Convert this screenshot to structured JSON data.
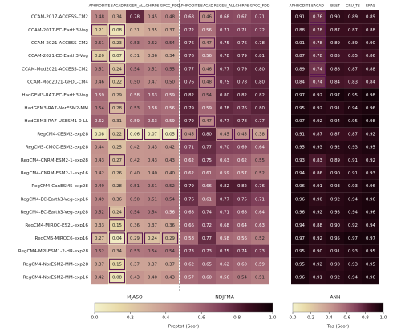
{
  "chart_data": {
    "type": "heatmap",
    "colormap": [
      "#f4f2cc",
      "#e8d9a8",
      "#d7b7a0",
      "#c5958f",
      "#a86c78",
      "#7e3e58",
      "#3e0f22",
      "#0d0005"
    ],
    "rows": [
      "CCAM-2017-ACCESS-CM2",
      "CCAM-2017-EC-Earth3-Veg",
      "CCAM-2021-ACCESS-CM2",
      "CCAM-2021-EC-Earth3-Veg",
      "CCAM-Mod2021-ACCESS-CM2",
      "CCAM-Mod2021-GFDL-CM4",
      "HadGEM3-RA7-EC-Earth3-Veg",
      "HadGEM3-RA7-NorESM2-MM",
      "HadGEM3-RA7-UKESM1-0-LL",
      "RegCM4-CESM2-exp28",
      "RegCM5-CMCC-ESM2-exp28",
      "RegCM4-CNRM-ESM2-1-exp28",
      "RegCM4-CNRM-ESM2-1-exp16",
      "RegCM4-CanESM5-exp28",
      "RegCM4-EC-Earth3-Veg-exp16",
      "RegCM4-EC-Earth3-Veg-exp28",
      "RegCM4-MIROC-ES2L-exp16",
      "RegCM5-MIROC6-exp16",
      "RegCM4-MPI-ESM1-2-HR-exp28",
      "RegCM4-NorESM2-MM-exp28",
      "RegCM4-NorESM2-MM-exp16"
    ],
    "panels": [
      {
        "title": "MJASO",
        "columns": [
          "APHRODITE",
          "SACAD",
          "REGEN_ALL",
          "CHIRPS",
          "GPCC_FDD"
        ],
        "values": [
          [
            0.48,
            0.34,
            0.78,
            0.45,
            0.48
          ],
          [
            0.21,
            0.08,
            0.31,
            0.35,
            0.37
          ],
          [
            0.51,
            0.23,
            0.53,
            0.52,
            0.54
          ],
          [
            0.2,
            0.07,
            0.31,
            0.36,
            0.34
          ],
          [
            0.51,
            0.24,
            0.54,
            0.51,
            0.55
          ],
          [
            0.46,
            0.22,
            0.5,
            0.47,
            0.5
          ],
          [
            0.59,
            0.29,
            0.58,
            0.63,
            0.59
          ],
          [
            0.54,
            0.28,
            0.53,
            0.58,
            0.56
          ],
          [
            0.62,
            0.31,
            0.59,
            0.63,
            0.59
          ],
          [
            0.08,
            0.22,
            0.06,
            0.07,
            0.05
          ],
          [
            0.44,
            0.25,
            0.42,
            0.43,
            0.42
          ],
          [
            0.43,
            0.27,
            0.42,
            0.43,
            0.43
          ],
          [
            0.42,
            0.26,
            0.4,
            0.4,
            0.4
          ],
          [
            0.49,
            0.28,
            0.51,
            0.51,
            0.52
          ],
          [
            0.49,
            0.36,
            0.5,
            0.51,
            0.54
          ],
          [
            0.52,
            0.24,
            0.54,
            0.54,
            0.56
          ],
          [
            0.33,
            0.15,
            0.36,
            0.37,
            0.36
          ],
          [
            0.27,
            0.04,
            0.29,
            0.24,
            0.29
          ],
          [
            0.52,
            0.34,
            0.53,
            0.54,
            0.54
          ],
          [
            0.37,
            0.15,
            0.37,
            0.37,
            0.37
          ],
          [
            0.42,
            0.08,
            0.43,
            0.4,
            0.43
          ]
        ],
        "value_labels": [
          [
            "0.48",
            "0.34",
            "0.78",
            "0.45",
            "0.48"
          ],
          [
            "0.21",
            "0.08",
            "0.31",
            "0.35",
            "0.37"
          ],
          [
            "0.51",
            "0.23",
            "0.53",
            "0.52",
            "0.54"
          ],
          [
            "0.20",
            "0.07",
            "0.31",
            "0.36",
            "0.34"
          ],
          [
            "0.51",
            "0.24",
            "0.54",
            "0.51",
            "0.55"
          ],
          [
            "0.46",
            "0.22",
            "0.50",
            "0.47",
            "0.50"
          ],
          [
            "0.59",
            "0.29",
            "0.58",
            "0.63",
            "0.59"
          ],
          [
            "0.54",
            "0.28",
            "0.53",
            "0.58",
            "0.56"
          ],
          [
            "0.62",
            "0.31",
            "0.59",
            "0.63",
            "0.59"
          ],
          [
            "0.08",
            "0.22",
            "0.06",
            "0.07",
            "0.05"
          ],
          [
            "0.44",
            "0.25",
            "0.42",
            "0.43",
            "0.42"
          ],
          [
            "0.43",
            "0.27",
            "0.42",
            "0.43",
            "0.43"
          ],
          [
            "0.42",
            "0.26",
            "0.40",
            "0.40",
            "0.40"
          ],
          [
            "0.49",
            "0.28",
            "0.51",
            "0.51",
            "0.52"
          ],
          [
            "0.49",
            "0.36",
            "0.50",
            "0.51",
            "0.54"
          ],
          [
            "0.52",
            "0.24",
            "0.54",
            "0.54",
            "0.56"
          ],
          [
            "0.33",
            "0.15",
            "0.36",
            "0.37",
            "0.36"
          ],
          [
            "0.27",
            "0.04",
            "0.29",
            "0.24",
            "0.29"
          ],
          [
            "0.52",
            "0.34",
            "0.53",
            "0.54",
            "0.54"
          ],
          [
            "0.37",
            "0.15",
            "0.37",
            "0.37",
            "0.37"
          ],
          [
            "0.42",
            "0.08",
            "0.43",
            "0.40",
            "0.43"
          ]
        ],
        "boxed": [
          [
            1,
            0
          ],
          [
            1,
            1
          ],
          [
            2,
            1
          ],
          [
            3,
            0
          ],
          [
            3,
            1
          ],
          [
            4,
            1
          ],
          [
            5,
            1
          ],
          [
            7,
            1
          ],
          [
            9,
            0
          ],
          [
            9,
            1
          ],
          [
            9,
            2
          ],
          [
            9,
            3
          ],
          [
            9,
            4
          ],
          [
            11,
            1
          ],
          [
            15,
            1
          ],
          [
            16,
            1
          ],
          [
            17,
            0
          ],
          [
            17,
            1
          ],
          [
            17,
            2
          ],
          [
            17,
            3
          ],
          [
            17,
            4
          ],
          [
            19,
            1
          ],
          [
            20,
            1
          ]
        ]
      },
      {
        "title": "NDJFMA",
        "columns": [
          "APHRODITE",
          "SACAD",
          "REGEN_ALL",
          "CHIRPS",
          "GPCC_FDD"
        ],
        "values": [
          [
            0.68,
            0.46,
            0.68,
            0.67,
            0.71
          ],
          [
            0.72,
            0.56,
            0.71,
            0.71,
            0.72
          ],
          [
            0.76,
            0.47,
            0.75,
            0.76,
            0.78
          ],
          [
            0.76,
            0.56,
            0.78,
            0.79,
            0.81
          ],
          [
            0.77,
            0.46,
            0.77,
            0.79,
            0.8
          ],
          [
            0.76,
            0.48,
            0.75,
            0.78,
            0.8
          ],
          [
            0.82,
            0.54,
            0.8,
            0.82,
            0.82
          ],
          [
            0.79,
            0.59,
            0.78,
            0.76,
            0.8
          ],
          [
            0.79,
            0.47,
            0.77,
            0.78,
            0.77
          ],
          [
            0.45,
            0.8,
            0.45,
            0.45,
            0.38
          ],
          [
            0.71,
            0.77,
            0.7,
            0.69,
            0.64
          ],
          [
            0.62,
            0.75,
            0.63,
            0.62,
            0.55
          ],
          [
            0.62,
            0.61,
            0.59,
            0.57,
            0.52
          ],
          [
            0.79,
            0.66,
            0.82,
            0.82,
            0.76
          ],
          [
            0.76,
            0.61,
            0.77,
            0.75,
            0.71
          ],
          [
            0.68,
            0.74,
            0.71,
            0.68,
            0.64
          ],
          [
            0.66,
            0.72,
            0.68,
            0.64,
            0.63
          ],
          [
            0.58,
            0.77,
            0.58,
            0.56,
            0.52
          ],
          [
            0.73,
            0.73,
            0.75,
            0.74,
            0.73
          ],
          [
            0.62,
            0.65,
            0.62,
            0.6,
            0.59
          ],
          [
            0.57,
            0.6,
            0.56,
            0.54,
            0.51
          ]
        ],
        "value_labels": [
          [
            "0.68",
            "0.46",
            "0.68",
            "0.67",
            "0.71"
          ],
          [
            "0.72",
            "0.56",
            "0.71",
            "0.71",
            "0.72"
          ],
          [
            "0.76",
            "0.47",
            "0.75",
            "0.76",
            "0.78"
          ],
          [
            "0.76",
            "0.56",
            "0.78",
            "0.79",
            "0.81"
          ],
          [
            "0.77",
            "0.46",
            "0.77",
            "0.79",
            "0.80"
          ],
          [
            "0.76",
            "0.48",
            "0.75",
            "0.78",
            "0.80"
          ],
          [
            "0.82",
            "0.54",
            "0.80",
            "0.82",
            "0.82"
          ],
          [
            "0.79",
            "0.59",
            "0.78",
            "0.76",
            "0.80"
          ],
          [
            "0.79",
            "0.47",
            "0.77",
            "0.78",
            "0.77"
          ],
          [
            "0.45",
            "0.80",
            "0.45",
            "0.45",
            "0.38"
          ],
          [
            "0.71",
            "0.77",
            "0.70",
            "0.69",
            "0.64"
          ],
          [
            "0.62",
            "0.75",
            "0.63",
            "0.62",
            "0.55"
          ],
          [
            "0.62",
            "0.61",
            "0.59",
            "0.57",
            "0.52"
          ],
          [
            "0.79",
            "0.66",
            "0.82",
            "0.82",
            "0.76"
          ],
          [
            "0.76",
            "0.61",
            "0.77",
            "0.75",
            "0.71"
          ],
          [
            "0.68",
            "0.74",
            "0.71",
            "0.68",
            "0.64"
          ],
          [
            "0.66",
            "0.72",
            "0.68",
            "0.64",
            "0.63"
          ],
          [
            "0.58",
            "0.77",
            "0.58",
            "0.56",
            "0.52"
          ],
          [
            "0.73",
            "0.73",
            "0.75",
            "0.74",
            "0.73"
          ],
          [
            "0.62",
            "0.65",
            "0.62",
            "0.60",
            "0.59"
          ],
          [
            "0.57",
            "0.60",
            "0.56",
            "0.54",
            "0.51"
          ]
        ],
        "boxed": [
          [
            0,
            1
          ],
          [
            2,
            1
          ],
          [
            4,
            1
          ],
          [
            5,
            1
          ],
          [
            8,
            1
          ],
          [
            9,
            0
          ],
          [
            9,
            2
          ],
          [
            9,
            3
          ],
          [
            9,
            4
          ]
        ]
      },
      {
        "title": "ANN",
        "columns": [
          "APHRODITE",
          "SACAD",
          "BEST",
          "CRU_TS",
          "ERA5"
        ],
        "values": [
          [
            0.91,
            0.76,
            0.9,
            0.89,
            0.89
          ],
          [
            0.88,
            0.78,
            0.87,
            0.87,
            0.88
          ],
          [
            0.91,
            0.78,
            0.89,
            0.89,
            0.9
          ],
          [
            0.87,
            0.78,
            0.85,
            0.85,
            0.86
          ],
          [
            0.89,
            0.74,
            0.88,
            0.87,
            0.88
          ],
          [
            0.84,
            0.74,
            0.84,
            0.83,
            0.84
          ],
          [
            0.97,
            0.92,
            0.97,
            0.95,
            0.98
          ],
          [
            0.95,
            0.92,
            0.91,
            0.94,
            0.96
          ],
          [
            0.97,
            0.92,
            0.94,
            0.95,
            0.98
          ],
          [
            0.91,
            0.87,
            0.87,
            0.87,
            0.92
          ],
          [
            0.95,
            0.93,
            0.92,
            0.93,
            0.95
          ],
          [
            0.93,
            0.83,
            0.89,
            0.91,
            0.92
          ],
          [
            0.94,
            0.86,
            0.9,
            0.91,
            0.93
          ],
          [
            0.96,
            0.91,
            0.93,
            0.93,
            0.96
          ],
          [
            0.96,
            0.9,
            0.92,
            0.94,
            0.96
          ],
          [
            0.96,
            0.92,
            0.93,
            0.94,
            0.96
          ],
          [
            0.94,
            0.88,
            0.9,
            0.92,
            0.94
          ],
          [
            0.97,
            0.92,
            0.95,
            0.97,
            0.97
          ],
          [
            0.95,
            0.9,
            0.91,
            0.93,
            0.95
          ],
          [
            0.95,
            0.92,
            0.9,
            0.93,
            0.95
          ],
          [
            0.96,
            0.91,
            0.92,
            0.94,
            0.96
          ]
        ],
        "value_labels": [
          [
            "0.91",
            "0.76",
            "0.90",
            "0.89",
            "0.89"
          ],
          [
            "0.88",
            "0.78",
            "0.87",
            "0.87",
            "0.88"
          ],
          [
            "0.91",
            "0.78",
            "0.89",
            "0.89",
            "0.90"
          ],
          [
            "0.87",
            "0.78",
            "0.85",
            "0.85",
            "0.86"
          ],
          [
            "0.89",
            "0.74",
            "0.88",
            "0.87",
            "0.88"
          ],
          [
            "0.84",
            "0.74",
            "0.84",
            "0.83",
            "0.84"
          ],
          [
            "0.97",
            "0.92",
            "0.97",
            "0.95",
            "0.98"
          ],
          [
            "0.95",
            "0.92",
            "0.91",
            "0.94",
            "0.96"
          ],
          [
            "0.97",
            "0.92",
            "0.94",
            "0.95",
            "0.98"
          ],
          [
            "0.91",
            "0.87",
            "0.87",
            "0.87",
            "0.92"
          ],
          [
            "0.95",
            "0.93",
            "0.92",
            "0.93",
            "0.95"
          ],
          [
            "0.93",
            "0.83",
            "0.89",
            "0.91",
            "0.92"
          ],
          [
            "0.94",
            "0.86",
            "0.90",
            "0.91",
            "0.93"
          ],
          [
            "0.96",
            "0.91",
            "0.93",
            "0.93",
            "0.96"
          ],
          [
            "0.96",
            "0.90",
            "0.92",
            "0.94",
            "0.96"
          ],
          [
            "0.96",
            "0.92",
            "0.93",
            "0.94",
            "0.96"
          ],
          [
            "0.94",
            "0.88",
            "0.90",
            "0.92",
            "0.94"
          ],
          [
            "0.97",
            "0.92",
            "0.95",
            "0.97",
            "0.97"
          ],
          [
            "0.95",
            "0.90",
            "0.91",
            "0.93",
            "0.95"
          ],
          [
            "0.95",
            "0.92",
            "0.90",
            "0.93",
            "0.95"
          ],
          [
            "0.96",
            "0.91",
            "0.92",
            "0.94",
            "0.96"
          ]
        ],
        "boxed": [
          [
            0,
            1
          ],
          [
            1,
            1
          ],
          [
            2,
            1
          ],
          [
            3,
            1
          ],
          [
            4,
            1
          ],
          [
            5,
            1
          ]
        ]
      }
    ],
    "colorbars": [
      {
        "label": "Prcptot (Scor)",
        "lim": [
          0,
          1
        ],
        "ticks": [
          {
            "value": 0,
            "label": "0.0"
          },
          0.2,
          0.4,
          0.6,
          0.8,
          {
            "value": 1,
            "label": "1.0"
          }
        ]
      },
      {
        "label": "Tas (Scor)",
        "lim": [
          0,
          1
        ],
        "ticks": [
          {
            "value": 0,
            "label": "0.0"
          },
          0.2,
          0.4,
          0.6,
          0.8,
          {
            "value": 1,
            "label": "1.0"
          }
        ]
      }
    ]
  }
}
